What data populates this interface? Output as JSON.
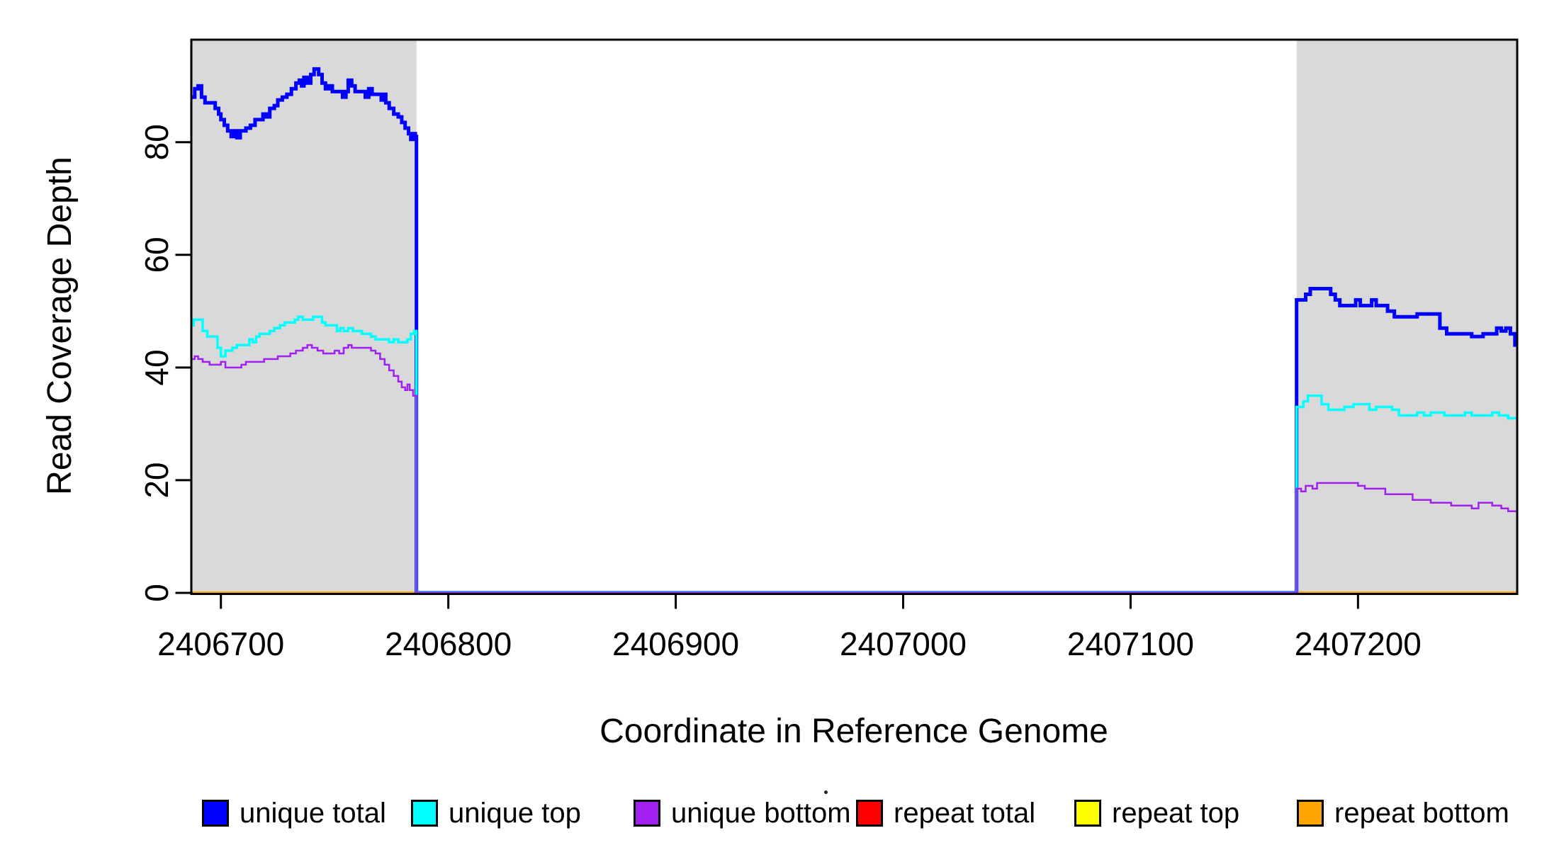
{
  "chart_data": {
    "type": "line",
    "step": "after",
    "title": "",
    "xlabel": "Coordinate in Reference Genome",
    "ylabel": "Read Coverage Depth",
    "xlim": [
      2406687,
      2407270
    ],
    "ylim": [
      0,
      98.2
    ],
    "x_ticks": [
      2406700,
      2406800,
      2406900,
      2407000,
      2407100,
      2407200
    ],
    "y_ticks": [
      0,
      20,
      40,
      60,
      80
    ],
    "grid": false,
    "legend_position": "bottom",
    "highlight_regions": [
      {
        "name": "left-flank-region",
        "start": 2406687,
        "end": 2406786,
        "color": "#D9D9D9"
      },
      {
        "name": "right-flank-region",
        "start": 2407173,
        "end": 2407270,
        "color": "#D9D9D9"
      }
    ],
    "series": [
      {
        "name": "repeat total",
        "color": "#FF0000",
        "width": 3,
        "points": [
          [
            2406687,
            0
          ]
        ]
      },
      {
        "name": "repeat top",
        "color": "#FFFF00",
        "width": 3,
        "points": [
          [
            2406687,
            0
          ]
        ]
      },
      {
        "name": "repeat bottom",
        "color": "#FFA500",
        "width": 4,
        "points": [
          [
            2406687,
            0
          ]
        ]
      },
      {
        "name": "unique total",
        "color": "#0000FF",
        "width": 5,
        "points": [
          [
            2406687,
            88
          ],
          [
            2406688.5,
            89.5
          ],
          [
            2406690,
            90
          ],
          [
            2406691.5,
            88
          ],
          [
            2406693,
            87
          ],
          [
            2406696,
            87
          ],
          [
            2406697.5,
            86
          ],
          [
            2406699,
            85
          ],
          [
            2406700,
            84
          ],
          [
            2406701.5,
            83
          ],
          [
            2406703,
            82
          ],
          [
            2406704.5,
            81
          ],
          [
            2406706,
            82
          ],
          [
            2406707,
            80.8
          ],
          [
            2406708.5,
            82
          ],
          [
            2406711,
            82.5
          ],
          [
            2406713,
            83
          ],
          [
            2406715,
            84
          ],
          [
            2406717,
            84
          ],
          [
            2406718.5,
            85
          ],
          [
            2406720,
            84.5
          ],
          [
            2406721.5,
            86
          ],
          [
            2406723.5,
            86.5
          ],
          [
            2406725,
            87.5
          ],
          [
            2406727,
            88
          ],
          [
            2406729,
            88.5
          ],
          [
            2406731,
            89.5
          ],
          [
            2406733,
            90.5
          ],
          [
            2406734.5,
            91
          ],
          [
            2406735.5,
            90
          ],
          [
            2406736.5,
            91.5
          ],
          [
            2406738,
            90.5
          ],
          [
            2406739.5,
            92
          ],
          [
            2406741,
            93
          ],
          [
            2406743,
            92
          ],
          [
            2406744.5,
            90.5
          ],
          [
            2406746,
            89.5
          ],
          [
            2406747.5,
            90
          ],
          [
            2406749,
            89
          ],
          [
            2406752,
            89
          ],
          [
            2406753.5,
            88
          ],
          [
            2406755,
            89
          ],
          [
            2406756,
            91
          ],
          [
            2406757.5,
            90
          ],
          [
            2406759,
            89
          ],
          [
            2406762,
            89
          ],
          [
            2406763.5,
            88
          ],
          [
            2406765,
            89.5
          ],
          [
            2406766.5,
            88.5
          ],
          [
            2406769,
            88.5
          ],
          [
            2406770.5,
            87.5
          ],
          [
            2406771.5,
            88.5
          ],
          [
            2406772.5,
            87
          ],
          [
            2406774,
            86
          ],
          [
            2406776,
            85
          ],
          [
            2406778,
            84.5
          ],
          [
            2406779.5,
            83.5
          ],
          [
            2406781,
            82.5
          ],
          [
            2406782.5,
            81.5
          ],
          [
            2406783.5,
            80.5
          ],
          [
            2406784.5,
            81.5
          ],
          [
            2406785.5,
            81
          ],
          [
            2406786,
            0
          ],
          [
            2407173,
            52
          ],
          [
            2407177,
            53
          ],
          [
            2407179,
            54
          ],
          [
            2407186,
            54
          ],
          [
            2407188,
            53
          ],
          [
            2407190,
            52
          ],
          [
            2407192,
            51
          ],
          [
            2407197,
            51
          ],
          [
            2407199,
            52
          ],
          [
            2407201,
            51
          ],
          [
            2407204,
            51
          ],
          [
            2407206,
            52
          ],
          [
            2407208,
            51
          ],
          [
            2407213,
            50
          ],
          [
            2407216,
            49
          ],
          [
            2407224,
            49
          ],
          [
            2407226,
            49.5
          ],
          [
            2407234,
            49.5
          ],
          [
            2407236,
            47
          ],
          [
            2407239,
            46
          ],
          [
            2407248,
            46
          ],
          [
            2407250,
            45.5
          ],
          [
            2407253,
            45.5
          ],
          [
            2407255,
            46
          ],
          [
            2407259,
            46
          ],
          [
            2407261,
            47
          ],
          [
            2407263,
            46.5
          ],
          [
            2407265,
            47
          ],
          [
            2407267,
            46
          ],
          [
            2407269,
            44
          ]
        ]
      },
      {
        "name": "unique top",
        "color": "#00FFFF",
        "width": 3.5,
        "points": [
          [
            2406687,
            47.5
          ],
          [
            2406688,
            48.5
          ],
          [
            2406690.5,
            48.5
          ],
          [
            2406692,
            46.5
          ],
          [
            2406694,
            45.5
          ],
          [
            2406697,
            45.5
          ],
          [
            2406698.5,
            43.5
          ],
          [
            2406700,
            42
          ],
          [
            2406702,
            43
          ],
          [
            2406705,
            43.5
          ],
          [
            2406707,
            44
          ],
          [
            2406711,
            44
          ],
          [
            2406712.5,
            45
          ],
          [
            2406714,
            44.5
          ],
          [
            2406715.5,
            45.5
          ],
          [
            2406717,
            46
          ],
          [
            2406720,
            46
          ],
          [
            2406721.5,
            46.5
          ],
          [
            2406723.5,
            47
          ],
          [
            2406726,
            47.5
          ],
          [
            2406728,
            48
          ],
          [
            2406731,
            48
          ],
          [
            2406732.5,
            48.5
          ],
          [
            2406734,
            49
          ],
          [
            2406736,
            48.5
          ],
          [
            2406739,
            48.5
          ],
          [
            2406740.5,
            49
          ],
          [
            2406743,
            49
          ],
          [
            2406744.5,
            48
          ],
          [
            2406746,
            47.5
          ],
          [
            2406749,
            47.5
          ],
          [
            2406751,
            46.5
          ],
          [
            2406752.5,
            47
          ],
          [
            2406754,
            46.5
          ],
          [
            2406756,
            47
          ],
          [
            2406758,
            46.5
          ],
          [
            2406760.5,
            46.5
          ],
          [
            2406762,
            46
          ],
          [
            2406764,
            46
          ],
          [
            2406766,
            45.5
          ],
          [
            2406768,
            45
          ],
          [
            2406772,
            45
          ],
          [
            2406774,
            44.5
          ],
          [
            2406776,
            45
          ],
          [
            2406778,
            44.5
          ],
          [
            2406780,
            44.5
          ],
          [
            2406782,
            45
          ],
          [
            2406783.5,
            46
          ],
          [
            2406785,
            46.5
          ],
          [
            2406786,
            0
          ],
          [
            2407173,
            33
          ],
          [
            2407176,
            34
          ],
          [
            2407178,
            35
          ],
          [
            2407182,
            35
          ],
          [
            2407184,
            33.5
          ],
          [
            2407187,
            32.5
          ],
          [
            2407191,
            32.5
          ],
          [
            2407194,
            33
          ],
          [
            2407198,
            33.5
          ],
          [
            2407202,
            33.5
          ],
          [
            2407205,
            32.5
          ],
          [
            2407208,
            33
          ],
          [
            2407212,
            33
          ],
          [
            2407215,
            32.5
          ],
          [
            2407218,
            31.5
          ],
          [
            2407224,
            31.5
          ],
          [
            2407226,
            32
          ],
          [
            2407229,
            31.5
          ],
          [
            2407232,
            32
          ],
          [
            2407235,
            32
          ],
          [
            2407238,
            31.5
          ],
          [
            2407244,
            31.5
          ],
          [
            2407247,
            32
          ],
          [
            2407250,
            31.5
          ],
          [
            2407256,
            31.5
          ],
          [
            2407259,
            32
          ],
          [
            2407262,
            31.5
          ],
          [
            2407266,
            31
          ],
          [
            2407269,
            31
          ]
        ]
      },
      {
        "name": "unique bottom",
        "color": "#A020F0",
        "width": 2.5,
        "points": [
          [
            2406687,
            41.5
          ],
          [
            2406688.5,
            42
          ],
          [
            2406690,
            41.5
          ],
          [
            2406692,
            41
          ],
          [
            2406695,
            40.5
          ],
          [
            2406698,
            40.5
          ],
          [
            2406700,
            41
          ],
          [
            2406702,
            40
          ],
          [
            2406707,
            40
          ],
          [
            2406709,
            40.5
          ],
          [
            2406711,
            41
          ],
          [
            2406717,
            41
          ],
          [
            2406719,
            41.5
          ],
          [
            2406723,
            41.5
          ],
          [
            2406725,
            42
          ],
          [
            2406729,
            42
          ],
          [
            2406730.5,
            42.5
          ],
          [
            2406733,
            43
          ],
          [
            2406736,
            43.5
          ],
          [
            2406738,
            44
          ],
          [
            2406740,
            43.5
          ],
          [
            2406742.5,
            43
          ],
          [
            2406745,
            42.5
          ],
          [
            2406748,
            42.5
          ],
          [
            2406750,
            43
          ],
          [
            2406752,
            42.5
          ],
          [
            2406754,
            43.5
          ],
          [
            2406756,
            44
          ],
          [
            2406757.5,
            43.5
          ],
          [
            2406760,
            43.5
          ],
          [
            2406763,
            43.5
          ],
          [
            2406766,
            43
          ],
          [
            2406768,
            42.5
          ],
          [
            2406770,
            41.5
          ],
          [
            2406772,
            40.5
          ],
          [
            2406774,
            39.5
          ],
          [
            2406776,
            38.5
          ],
          [
            2406778,
            37.5
          ],
          [
            2406779.5,
            36.5
          ],
          [
            2406781,
            36
          ],
          [
            2406782,
            37
          ],
          [
            2406783,
            36
          ],
          [
            2406784.5,
            35
          ],
          [
            2406786,
            0
          ],
          [
            2407173,
            18.5
          ],
          [
            2407175,
            18
          ],
          [
            2407177,
            19
          ],
          [
            2407180,
            18.5
          ],
          [
            2407182,
            19.5
          ],
          [
            2407197,
            19.5
          ],
          [
            2407200,
            19
          ],
          [
            2407203,
            18.5
          ],
          [
            2407209,
            18.5
          ],
          [
            2407212,
            17.5
          ],
          [
            2407221,
            17.5
          ],
          [
            2407224,
            16.5
          ],
          [
            2407229,
            16.5
          ],
          [
            2407232,
            16
          ],
          [
            2407238,
            16
          ],
          [
            2407241,
            15.5
          ],
          [
            2407247,
            15.5
          ],
          [
            2407250,
            15
          ],
          [
            2407253,
            16
          ],
          [
            2407257,
            16
          ],
          [
            2407259,
            15.5
          ],
          [
            2407263,
            15
          ],
          [
            2407266,
            14.5
          ],
          [
            2407268,
            14.5
          ]
        ]
      }
    ]
  },
  "legend": {
    "items": [
      {
        "label": "unique total",
        "color": "#0000FF"
      },
      {
        "label": "unique top",
        "color": "#00FFFF"
      },
      {
        "label": "unique bottom",
        "color": "#A020F0"
      },
      {
        "label": "repeat total",
        "color": "#FF0000"
      },
      {
        "label": "repeat top",
        "color": "#FFFF00"
      },
      {
        "label": "repeat bottom",
        "color": "#FFA500"
      }
    ]
  }
}
